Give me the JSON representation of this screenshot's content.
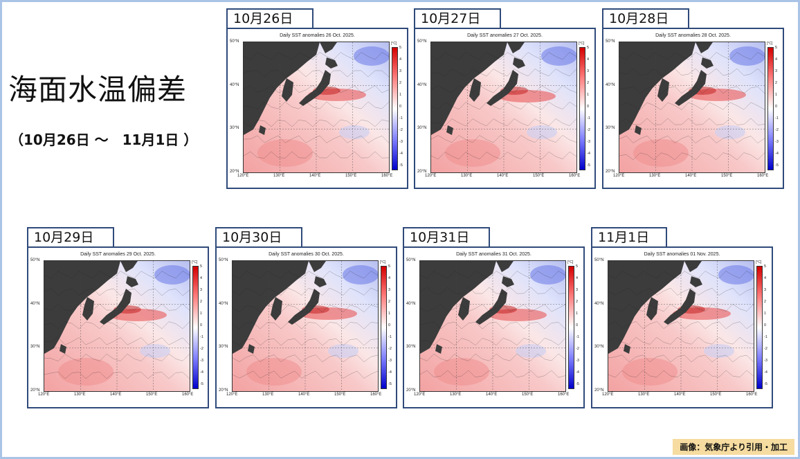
{
  "title": "海面水温偏差",
  "subtitle": "（10月26日 ～　11月1日 ）",
  "credit": "画像：気象庁より引用・加工",
  "colors": {
    "warm": "#e84a4a",
    "cool": "#4a5ce8",
    "land": "#3c3c3c",
    "frame": "#a9c4e6",
    "panel_border": "#2f4a7a",
    "credit_bg": "#f6dca0"
  },
  "axes": {
    "lat_labels": [
      "50°N",
      "40°N",
      "30°N",
      "20°N"
    ],
    "lon_labels": [
      "120°E",
      "130°E",
      "140°E",
      "150°E",
      "160°E"
    ],
    "unit": "[°C]",
    "colorbar_ticks": [
      "5",
      "4",
      "3",
      "2",
      "1",
      "0",
      "-1",
      "-2",
      "-3",
      "-4",
      "-5"
    ]
  },
  "panels": [
    {
      "date": "10月26日",
      "plot_title": "Daily SST anomalies 26 Oct. 2025."
    },
    {
      "date": "10月27日",
      "plot_title": "Daily SST anomalies 27 Oct. 2025."
    },
    {
      "date": "10月28日",
      "plot_title": "Daily SST anomalies 28 Oct. 2025."
    },
    {
      "date": "10月29日",
      "plot_title": "Daily SST anomalies 29 Oct. 2025."
    },
    {
      "date": "10月30日",
      "plot_title": "Daily SST anomalies 30 Oct. 2025."
    },
    {
      "date": "10月31日",
      "plot_title": "Daily SST anomalies 31 Oct. 2025."
    },
    {
      "date": "11月1日",
      "plot_title": "Daily SST anomalies 01 Nov. 2025."
    }
  ]
}
